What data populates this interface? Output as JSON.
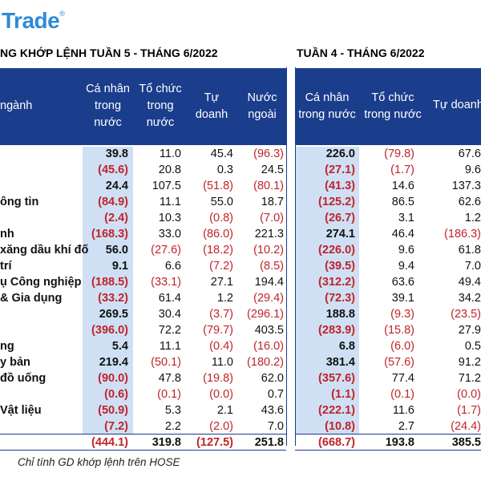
{
  "logo": {
    "text": "Trade",
    "mark": "®"
  },
  "left_title": "NG KHỚP LỆNH TUẦN 5 - THÁNG 6/2022",
  "right_title": "TUẦN 4 - THÁNG 6/2022",
  "left_headers": [
    "ngành",
    "Cá nhân\ntrong\nnước",
    "Tổ chức\ntrong\nnước",
    "Tự\ndoanh",
    "Nước\nngoài"
  ],
  "right_headers": [
    "Cá nhân\ntrong nước",
    "Tổ chức\ntrong nước",
    "Tự doanh"
  ],
  "rows": [
    {
      "sector": "",
      "w5": [
        "39.8",
        "11.0",
        "45.4",
        "(96.3)"
      ],
      "w4": [
        "226.0",
        "(79.8)",
        "67.6"
      ]
    },
    {
      "sector": "",
      "w5": [
        "(45.6)",
        "20.8",
        "0.3",
        "24.5"
      ],
      "w4": [
        "(27.1)",
        "(1.7)",
        "9.6"
      ]
    },
    {
      "sector": "",
      "w5": [
        "24.4",
        "107.5",
        "(51.8)",
        "(80.1)"
      ],
      "w4": [
        "(41.3)",
        "14.6",
        "137.3"
      ]
    },
    {
      "sector": "ông tin",
      "w5": [
        "(84.9)",
        "11.1",
        "55.0",
        "18.7"
      ],
      "w4": [
        "(125.2)",
        "86.5",
        "62.6"
      ]
    },
    {
      "sector": "",
      "w5": [
        "(2.4)",
        "10.3",
        "(0.8)",
        "(7.0)"
      ],
      "w4": [
        "(26.7)",
        "3.1",
        "1.2"
      ]
    },
    {
      "sector": "nh",
      "w5": [
        "(168.3)",
        "33.0",
        "(86.0)",
        "221.3"
      ],
      "w4": [
        "274.1",
        "46.4",
        "(186.3)"
      ]
    },
    {
      "sector": "xăng dầu khí đố",
      "w5": [
        "56.0",
        "(27.6)",
        "(18.2)",
        "(10.2)"
      ],
      "w4": [
        "(226.0)",
        "9.6",
        "61.8"
      ]
    },
    {
      "sector": "trí",
      "w5": [
        "9.1",
        "6.6",
        "(7.2)",
        "(8.5)"
      ],
      "w4": [
        "(39.5)",
        "9.4",
        "7.0"
      ]
    },
    {
      "sector": "ụ Công nghiệp",
      "w5": [
        "(188.5)",
        "(33.1)",
        "27.1",
        "194.4"
      ],
      "w4": [
        "(312.2)",
        "63.6",
        "49.4"
      ]
    },
    {
      "sector": "& Gia dụng",
      "w5": [
        "(33.2)",
        "61.4",
        "1.2",
        "(29.4)"
      ],
      "w4": [
        "(72.3)",
        "39.1",
        "34.2"
      ]
    },
    {
      "sector": "",
      "w5": [
        "269.5",
        "30.4",
        "(3.7)",
        "(296.1)"
      ],
      "w4": [
        "188.8",
        "(9.3)",
        "(23.5)"
      ]
    },
    {
      "sector": "",
      "w5": [
        "(396.0)",
        "72.2",
        "(79.7)",
        "403.5"
      ],
      "w4": [
        "(283.9)",
        "(15.8)",
        "27.9"
      ]
    },
    {
      "sector": "ng",
      "w5": [
        "5.4",
        "11.1",
        "(0.4)",
        "(16.0)"
      ],
      "w4": [
        "6.8",
        "(6.0)",
        "0.5"
      ]
    },
    {
      "sector": "y bản",
      "w5": [
        "219.4",
        "(50.1)",
        "11.0",
        "(180.2)"
      ],
      "w4": [
        "381.4",
        "(57.6)",
        "91.2"
      ]
    },
    {
      "sector": "đồ uống",
      "w5": [
        "(90.0)",
        "47.8",
        "(19.8)",
        "62.0"
      ],
      "w4": [
        "(357.6)",
        "77.4",
        "71.2"
      ]
    },
    {
      "sector": "",
      "w5": [
        "(0.6)",
        "(0.1)",
        "(0.0)",
        "0.7"
      ],
      "w4": [
        "(1.1)",
        "(0.1)",
        "(0.0)"
      ]
    },
    {
      "sector": "Vật liệu",
      "w5": [
        "(50.9)",
        "5.3",
        "2.1",
        "43.6"
      ],
      "w4": [
        "(222.1)",
        "11.6",
        "(1.7)"
      ]
    },
    {
      "sector": "",
      "w5": [
        "(7.2)",
        "2.2",
        "(2.0)",
        "7.0"
      ],
      "w4": [
        "(10.8)",
        "2.7",
        "(24.4)"
      ]
    }
  ],
  "total": {
    "w5": [
      "(444.1)",
      "319.8",
      "(127.5)",
      "251.8"
    ],
    "w4": [
      "(668.7)",
      "193.8",
      "385.5"
    ]
  },
  "note": "Chỉ tính GD khớp lệnh trên HOSE",
  "colors": {
    "header_bg": "#1a3d8c",
    "highlight_col": "#cfe0f4",
    "negative": "#c0242a",
    "logo": "#2e8ad6"
  }
}
